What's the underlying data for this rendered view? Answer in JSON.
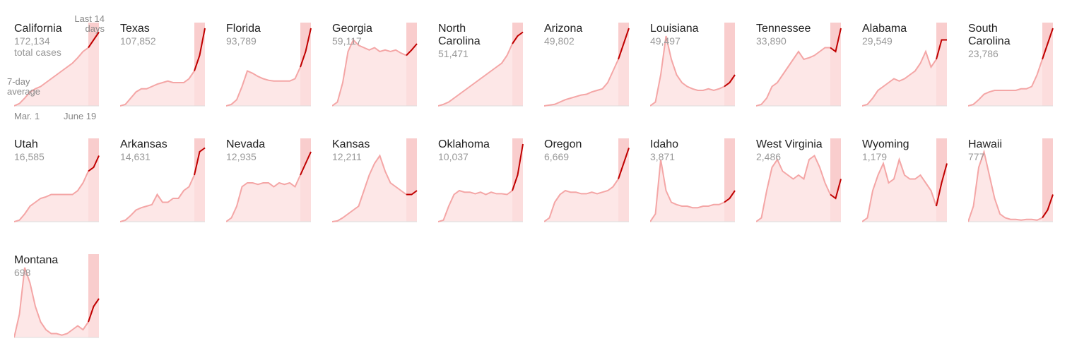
{
  "chart_data": {
    "type": "small-multiples",
    "annotations": {
      "total": "total cases",
      "recent": "Last 14 days",
      "average": "7-day average",
      "start": "Mar. 1",
      "end": "June 19"
    },
    "ylim": [
      0,
      100
    ],
    "area_color": "#fde1e1",
    "line_color": "#f4a6a6",
    "recent_color": "#c00000",
    "highlight_color": "#f6b8b8",
    "series": [
      {
        "name": "California",
        "total": "172,134",
        "values": [
          0,
          3,
          10,
          18,
          22,
          25,
          30,
          35,
          40,
          45,
          50,
          55,
          62,
          70,
          75,
          85,
          95
        ]
      },
      {
        "name": "Texas",
        "total": "107,852",
        "values": [
          0,
          2,
          10,
          18,
          22,
          22,
          25,
          28,
          30,
          32,
          30,
          30,
          30,
          35,
          45,
          65,
          100
        ]
      },
      {
        "name": "Florida",
        "total": "93,789",
        "values": [
          0,
          2,
          8,
          25,
          45,
          42,
          38,
          35,
          33,
          32,
          32,
          32,
          32,
          35,
          50,
          70,
          100
        ]
      },
      {
        "name": "Georgia",
        "total": "59,117",
        "values": [
          0,
          5,
          30,
          70,
          85,
          78,
          75,
          72,
          75,
          70,
          72,
          70,
          72,
          68,
          65,
          72,
          80
        ]
      },
      {
        "name": "North Carolina",
        "total": "51,471",
        "values": [
          0,
          2,
          5,
          10,
          15,
          20,
          25,
          30,
          35,
          40,
          45,
          50,
          55,
          65,
          80,
          90,
          95
        ]
      },
      {
        "name": "Arizona",
        "total": "49,802",
        "values": [
          0,
          1,
          2,
          5,
          8,
          10,
          12,
          14,
          15,
          18,
          20,
          22,
          30,
          45,
          60,
          80,
          100
        ]
      },
      {
        "name": "Louisiana",
        "total": "49,497",
        "values": [
          0,
          5,
          40,
          90,
          60,
          40,
          30,
          25,
          22,
          20,
          20,
          22,
          20,
          22,
          25,
          30,
          40
        ]
      },
      {
        "name": "Tennessee",
        "total": "33,890",
        "values": [
          0,
          2,
          10,
          25,
          30,
          40,
          50,
          60,
          70,
          60,
          62,
          65,
          70,
          75,
          75,
          70,
          100
        ]
      },
      {
        "name": "Alabama",
        "total": "29,549",
        "values": [
          0,
          2,
          10,
          20,
          25,
          30,
          35,
          32,
          35,
          40,
          45,
          55,
          70,
          50,
          60,
          85,
          85
        ]
      },
      {
        "name": "South Carolina",
        "total": "23,786",
        "values": [
          0,
          2,
          8,
          15,
          18,
          20,
          20,
          20,
          20,
          20,
          22,
          22,
          25,
          40,
          60,
          80,
          100
        ]
      },
      {
        "name": "Utah",
        "total": "16,585",
        "values": [
          0,
          2,
          10,
          20,
          25,
          30,
          32,
          35,
          35,
          35,
          35,
          35,
          40,
          50,
          65,
          70,
          85
        ]
      },
      {
        "name": "Arkansas",
        "total": "14,631",
        "values": [
          0,
          2,
          8,
          15,
          18,
          20,
          22,
          35,
          25,
          25,
          30,
          30,
          40,
          45,
          60,
          90,
          95
        ]
      },
      {
        "name": "Nevada",
        "total": "12,935",
        "values": [
          0,
          5,
          20,
          45,
          50,
          50,
          48,
          50,
          50,
          45,
          50,
          48,
          50,
          45,
          60,
          75,
          90
        ]
      },
      {
        "name": "Kansas",
        "total": "12,211",
        "values": [
          0,
          1,
          5,
          10,
          15,
          20,
          40,
          60,
          75,
          85,
          65,
          50,
          45,
          40,
          35,
          35,
          40
        ]
      },
      {
        "name": "Oklahoma",
        "total": "10,037",
        "values": [
          0,
          2,
          20,
          35,
          40,
          38,
          38,
          36,
          38,
          35,
          38,
          36,
          36,
          35,
          40,
          60,
          100
        ]
      },
      {
        "name": "Oregon",
        "total": "6,669",
        "values": [
          0,
          5,
          25,
          35,
          40,
          38,
          38,
          36,
          36,
          38,
          36,
          38,
          40,
          45,
          55,
          75,
          95
        ]
      },
      {
        "name": "Idaho",
        "total": "3,871",
        "values": [
          0,
          10,
          80,
          40,
          25,
          22,
          20,
          20,
          18,
          18,
          20,
          20,
          22,
          22,
          25,
          30,
          40
        ]
      },
      {
        "name": "West Virginia",
        "total": "2,486",
        "values": [
          0,
          5,
          40,
          70,
          80,
          65,
          60,
          55,
          60,
          55,
          80,
          85,
          70,
          50,
          35,
          30,
          55
        ]
      },
      {
        "name": "Wyoming",
        "total": "1,179",
        "values": [
          0,
          5,
          40,
          60,
          75,
          50,
          55,
          80,
          60,
          55,
          55,
          60,
          50,
          40,
          20,
          50,
          75
        ]
      },
      {
        "name": "Hawaii",
        "total": "777",
        "values": [
          0,
          20,
          70,
          90,
          60,
          30,
          10,
          5,
          3,
          3,
          2,
          3,
          3,
          2,
          5,
          15,
          35
        ]
      },
      {
        "name": "Montana",
        "total": "698",
        "values": [
          0,
          30,
          90,
          70,
          40,
          20,
          10,
          5,
          5,
          3,
          5,
          10,
          15,
          10,
          20,
          40,
          50
        ]
      }
    ]
  }
}
